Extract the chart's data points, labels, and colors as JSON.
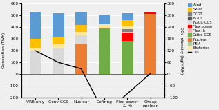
{
  "categories": [
    "VRE only",
    "Conv CCS",
    "Nuclear",
    "Cofiring",
    "Flex power\n& H₂",
    "Cheap\nnuclear"
  ],
  "series": {
    "Nuclear": [
      0,
      0,
      250,
      0,
      0,
      510
    ],
    "NGCC_CCS": [
      195,
      220,
      80,
      0,
      0,
      0
    ],
    "Cofire_CCS": [
      0,
      0,
      0,
      390,
      280,
      0
    ],
    "Flex_power": [
      0,
      0,
      0,
      0,
      65,
      10
    ],
    "Flex_H2": [
      0,
      0,
      0,
      0,
      15,
      0
    ],
    "OCGT": [
      0,
      0,
      0,
      0,
      20,
      0
    ],
    "NGCC": [
      0,
      0,
      0,
      0,
      0,
      0
    ],
    "PEM": [
      0,
      0,
      0,
      0,
      0,
      0
    ],
    "Batteries": [
      30,
      30,
      30,
      30,
      30,
      10
    ],
    "Solar": [
      75,
      70,
      55,
      0,
      50,
      0
    ],
    "Wind": [
      230,
      195,
      105,
      85,
      55,
      0
    ]
  },
  "colors": {
    "Nuclear": "#ED7D31",
    "NGCC_CCS": "#D9D9D9",
    "Cofire_CCS": "#70AD47",
    "Flex_power": "#FF0000",
    "Flex_H2": "#FFB3B3",
    "OCGT": "#808080",
    "NGCC": "#595959",
    "PEM": "#A9D18E",
    "Batteries": "#FFE699",
    "Solar": "#FFC000",
    "Wind": "#5B9BD5"
  },
  "co2": [
    120,
    60,
    27,
    -200,
    -100,
    3
  ],
  "ylim_min": -200,
  "ylim_max": 600,
  "y2lim_min": -120,
  "y2lim_max": 360,
  "yticks": [
    -200,
    -100,
    0,
    100,
    200,
    300,
    400,
    500,
    600
  ],
  "y2ticks": [
    -120,
    -60,
    0,
    60,
    120,
    180,
    240,
    300,
    360
  ],
  "ylabel": "Generation (TWh)",
  "y2label": "CO₂ intensity (kg/MWh)",
  "legend_labels": [
    "Wind",
    "Solar",
    "OCGT",
    "NGCC",
    "NGCC-CCS",
    "Flex power",
    "Flex H₂",
    "Cofire-CCS",
    "Nuclear",
    "PEM",
    "Batteries",
    "CO₂"
  ],
  "legend_colors": [
    "#5B9BD5",
    "#FFC000",
    "#808080",
    "#595959",
    "#D9D9D9",
    "#FF0000",
    "#FFB3B3",
    "#70AD47",
    "#ED7D31",
    "#A9D18E",
    "#FFE699",
    "#000000"
  ],
  "bg_color": "#EFEFEF"
}
